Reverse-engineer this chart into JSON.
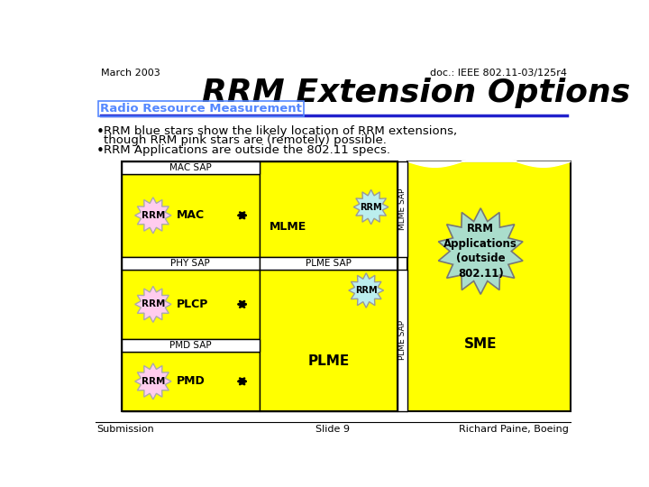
{
  "title": "RRM Extension Options",
  "subtitle": "Radio Resource Measurement",
  "doc_ref": "doc.: IEEE 802.11-03/125r4",
  "date": "March 2003",
  "bullet1": "RRM blue stars show the likely location of RRM extensions,",
  "bullet1b": "though RRM pink stars are (remotely) possible.",
  "bullet2": "RRM Applications are outside the 802.11 specs.",
  "footer_left": "Submission",
  "footer_center": "Slide 9",
  "footer_right": "Richard Paine, Boeing",
  "bg_color": "#ffffff",
  "yellow_color": "#ffff00",
  "rrm_pink_color": "#ffccee",
  "rrm_blue_color": "#bbeeee",
  "rrm_apps_color": "#aaddcc",
  "title_fontsize": 26,
  "body_fontsize": 9.5
}
